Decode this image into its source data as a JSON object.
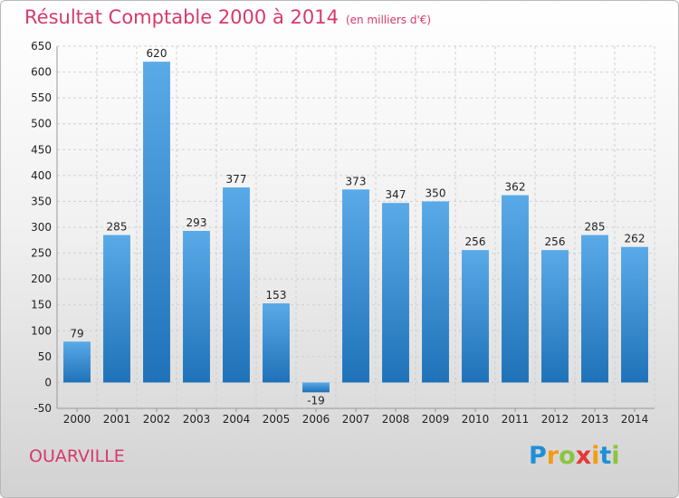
{
  "chart_data": {
    "type": "bar",
    "title": "Résultat Comptable 2000 à 2014",
    "subtitle": "(en milliers d'€)",
    "categories": [
      "2000",
      "2001",
      "2002",
      "2003",
      "2004",
      "2005",
      "2006",
      "2007",
      "2008",
      "2009",
      "2010",
      "2011",
      "2012",
      "2013",
      "2014"
    ],
    "values": [
      79,
      285,
      620,
      293,
      377,
      153,
      -19,
      373,
      347,
      350,
      256,
      362,
      256,
      285,
      262
    ],
    "value_labels": [
      "79",
      "285",
      "620",
      "293",
      "377",
      "153",
      "-19",
      "373",
      "347",
      "350",
      "256",
      "362",
      "256",
      "285",
      "262"
    ],
    "ylim": [
      -50,
      650
    ],
    "yticks": [
      -50,
      0,
      50,
      100,
      150,
      200,
      250,
      300,
      350,
      400,
      450,
      500,
      550,
      600,
      650
    ],
    "grid": true,
    "bar_color_top": "#5aaae8",
    "bar_color_bottom": "#1f72b8"
  },
  "location": "OUARVILLE",
  "brand": {
    "letters": [
      "P",
      "r",
      "o",
      "x",
      "i",
      "t",
      "i"
    ],
    "colors": [
      "#1e8fd6",
      "#f39c12",
      "#8bc53f",
      "#e53935",
      "#f39c12",
      "#1e8fd6",
      "#8bc53f"
    ]
  },
  "colors": {
    "accent": "#d63a6b",
    "grid": "#cfcfcf",
    "axis_text": "#222222"
  }
}
